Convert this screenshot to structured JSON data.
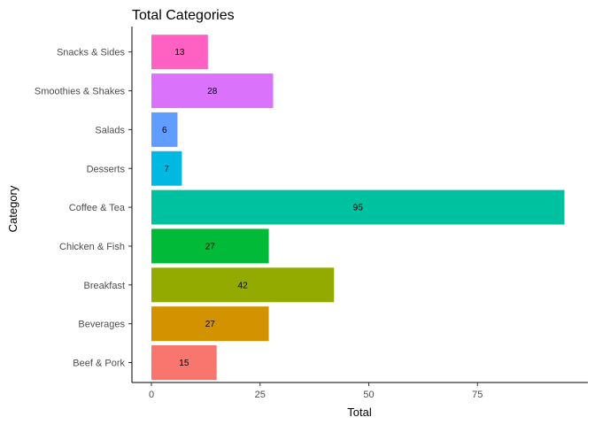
{
  "chart_data": {
    "type": "bar",
    "orientation": "horizontal",
    "title": "Total Categories",
    "xlabel": "Total",
    "ylabel": "Category",
    "categories": [
      "Beef & Pork",
      "Beverages",
      "Breakfast",
      "Chicken & Fish",
      "Coffee & Tea",
      "Desserts",
      "Salads",
      "Smoothies & Shakes",
      "Snacks & Sides"
    ],
    "values": [
      15,
      27,
      42,
      27,
      95,
      7,
      6,
      28,
      13
    ],
    "colors": [
      "#F8766D",
      "#D39200",
      "#93AA00",
      "#00BA38",
      "#00C19F",
      "#00B9E3",
      "#619CFF",
      "#DB72FB",
      "#FF61C3"
    ],
    "xlim": [
      0,
      95
    ],
    "xticks": [
      0,
      25,
      50,
      75
    ],
    "grid": false,
    "legend": "none"
  }
}
